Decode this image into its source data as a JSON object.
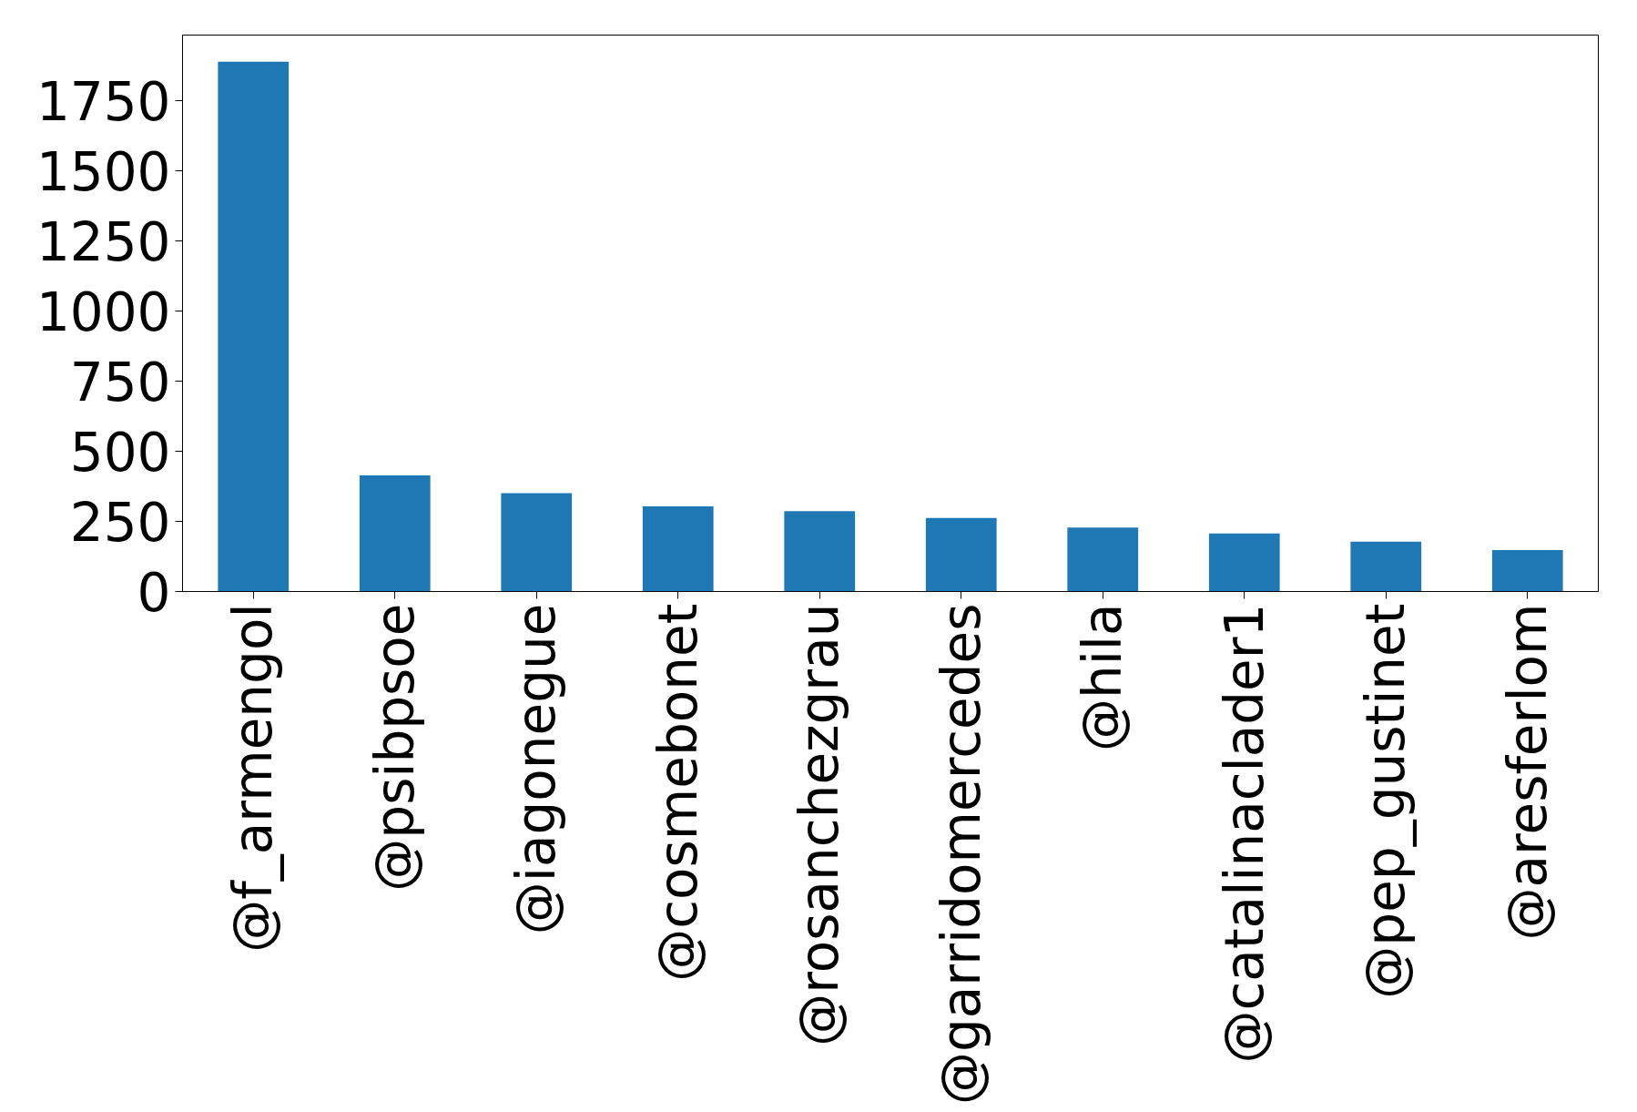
{
  "chart_data": {
    "type": "bar",
    "categories": [
      "@f_armengol",
      "@psibpsoe",
      "@iagonegue",
      "@cosmebonet",
      "@rosanchezgrau",
      "@garridomercedes",
      "@hila",
      "@catalinaclader1",
      "@pep_gustinet",
      "@aresferlom"
    ],
    "values": [
      1890,
      414,
      351,
      304,
      287,
      262,
      228,
      207,
      178,
      148
    ],
    "color": "#1f77b4",
    "ylim": [
      0,
      1985
    ],
    "yticks": [
      0,
      250,
      500,
      750,
      1000,
      1250,
      1500,
      1750
    ],
    "grid": false
  }
}
